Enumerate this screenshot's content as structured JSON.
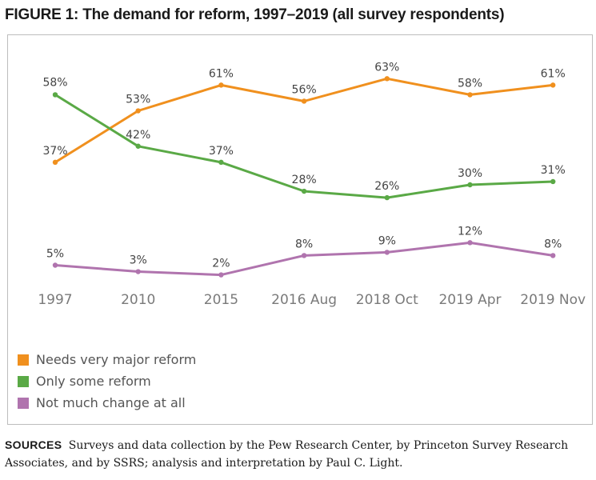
{
  "figure": {
    "title": "FIGURE 1: The demand for reform, 1997–2019 (all survey respondents)",
    "sources_label": "SOURCES",
    "sources_text": "Surveys and data collection by the Pew Research Center, by Princeton Survey Research Associates, and by SSRS; analysis and interpretation by Paul C. Light."
  },
  "chart_data": {
    "type": "line",
    "title": "FIGURE 1: The demand for reform, 1997–2019 (all survey respondents)",
    "xlabel": "",
    "ylabel": "",
    "categories": [
      "1997",
      "2010",
      "2015",
      "2016 Aug",
      "2018 Oct",
      "2019 Apr",
      "2019 Nov"
    ],
    "ylim": [
      0,
      70
    ],
    "grid": false,
    "legend_position": "bottom-left",
    "series": [
      {
        "name": "Needs very major reform",
        "color": "#f0901e",
        "values": [
          37,
          53,
          61,
          56,
          63,
          58,
          61
        ],
        "labels": [
          "37%",
          "53%",
          "61%",
          "56%",
          "63%",
          "58%",
          "61%"
        ]
      },
      {
        "name": "Only some reform",
        "color": "#5aa946",
        "values": [
          58,
          42,
          37,
          28,
          26,
          30,
          31
        ],
        "labels": [
          "58%",
          "42%",
          "37%",
          "28%",
          "26%",
          "30%",
          "31%"
        ]
      },
      {
        "name": "Not much change at all",
        "color": "#b074ae",
        "values": [
          5,
          3,
          2,
          8,
          9,
          12,
          8
        ],
        "labels": [
          "5%",
          "3%",
          "2%",
          "8%",
          "9%",
          "12%",
          "8%"
        ]
      }
    ]
  }
}
